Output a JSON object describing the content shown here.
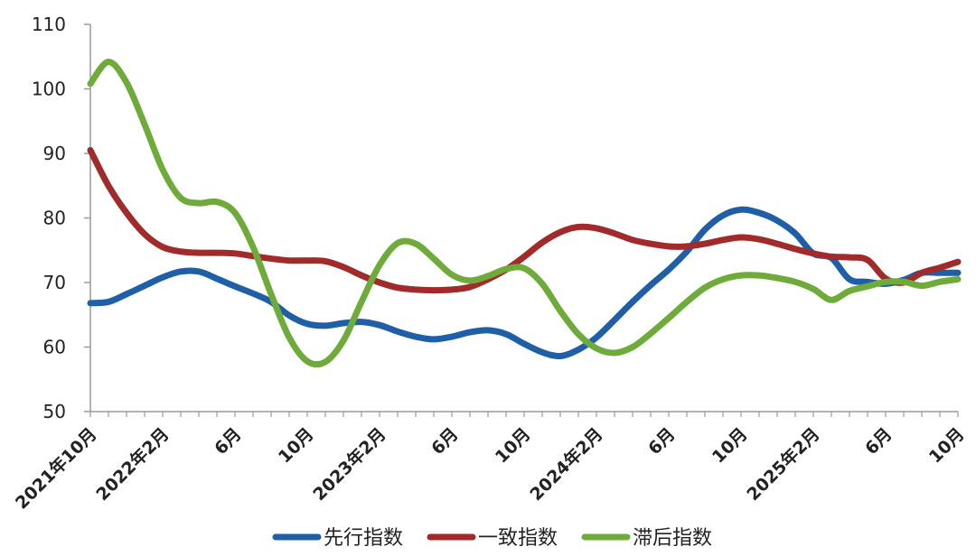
{
  "chart_data": {
    "type": "line",
    "title": "",
    "xlabel": "",
    "ylabel": "",
    "ylim": [
      50,
      110
    ],
    "yticks": [
      50,
      60,
      70,
      80,
      90,
      100,
      110
    ],
    "grid": false,
    "legend_position": "bottom",
    "x": [
      "2021年10月",
      "2021年11月",
      "2021年12月",
      "2022年1月",
      "2022年2月",
      "2022年3月",
      "2022年4月",
      "2022年5月",
      "2022年6月",
      "2022年7月",
      "2022年8月",
      "2022年9月",
      "2022年10月",
      "2022年11月",
      "2022年12月",
      "2023年1月",
      "2023年2月",
      "2023年3月",
      "2023年4月",
      "2023年5月",
      "2023年6月",
      "2023年7月",
      "2023年8月",
      "2023年9月",
      "2023年10月",
      "2023年11月",
      "2023年12月",
      "2024年1月",
      "2024年2月",
      "2024年3月",
      "2024年4月",
      "2024年5月",
      "2024年6月",
      "2024年7月",
      "2024年8月",
      "2024年9月",
      "2024年10月",
      "2024年11月",
      "2024年12月",
      "2025年1月",
      "2025年2月",
      "2025年3月",
      "2025年4月",
      "2025年5月",
      "2025年6月",
      "2025年7月",
      "2025年8月",
      "2025年9月",
      "2025年10月"
    ],
    "x_tick_labels": [
      "2021年10月",
      "2022年2月",
      "6月",
      "10月",
      "2023年2月",
      "6月",
      "10月",
      "2024年2月",
      "6月",
      "10月",
      "2025年2月",
      "6月",
      "10月"
    ],
    "x_tick_index": [
      0,
      4,
      8,
      12,
      16,
      20,
      24,
      28,
      32,
      36,
      40,
      44,
      48
    ],
    "series": [
      {
        "name": "先行指数",
        "color": "#1f5fa8",
        "values": [
          66.8,
          67.0,
          68.2,
          69.5,
          70.8,
          71.7,
          71.7,
          70.6,
          69.4,
          68.3,
          67.0,
          64.9,
          63.6,
          63.3,
          63.7,
          63.9,
          63.4,
          62.4,
          61.6,
          61.2,
          61.6,
          62.3,
          62.6,
          62.0,
          60.5,
          59.2,
          58.6,
          59.6,
          61.5,
          64.2,
          67.0,
          69.6,
          72.0,
          74.8,
          78.2,
          80.4,
          81.3,
          80.8,
          79.6,
          77.6,
          74.5,
          73.8,
          70.5,
          70.1,
          69.8,
          70.4,
          71.5,
          71.5,
          71.5
        ]
      },
      {
        "name": "一致指数",
        "color": "#a12a2a",
        "values": [
          90.5,
          85.0,
          80.8,
          77.5,
          75.5,
          74.8,
          74.6,
          74.6,
          74.5,
          74.1,
          73.7,
          73.4,
          73.4,
          73.3,
          72.4,
          71.1,
          70.0,
          69.2,
          68.9,
          68.8,
          68.9,
          69.3,
          70.5,
          72.0,
          74.0,
          76.2,
          77.8,
          78.6,
          78.4,
          77.6,
          76.6,
          76.0,
          75.6,
          75.6,
          76.0,
          76.6,
          77.0,
          76.7,
          76.0,
          75.2,
          74.5,
          74.0,
          73.9,
          73.5,
          70.6,
          70.0,
          71.5,
          72.3,
          73.2
        ]
      },
      {
        "name": "滞后指数",
        "color": "#6fab3a",
        "values": [
          100.8,
          104.2,
          101.0,
          94.5,
          87.5,
          83.1,
          82.3,
          82.5,
          80.8,
          75.5,
          68.2,
          61.5,
          57.8,
          57.7,
          61.0,
          67.0,
          72.7,
          76.1,
          76.0,
          73.7,
          71.2,
          70.3,
          71.0,
          72.1,
          72.2,
          69.8,
          65.6,
          62.0,
          59.8,
          59.1,
          60.0,
          62.1,
          64.5,
          67.0,
          69.2,
          70.5,
          71.1,
          71.1,
          70.7,
          70.1,
          69.0,
          67.3,
          68.7,
          69.4,
          70.1,
          70.1,
          69.5,
          70.1,
          70.5
        ]
      }
    ]
  },
  "legend": [
    {
      "label": "先行指数",
      "color": "#1f5fa8"
    },
    {
      "label": "一致指数",
      "color": "#a12a2a"
    },
    {
      "label": "滞后指数",
      "color": "#6fab3a"
    }
  ]
}
